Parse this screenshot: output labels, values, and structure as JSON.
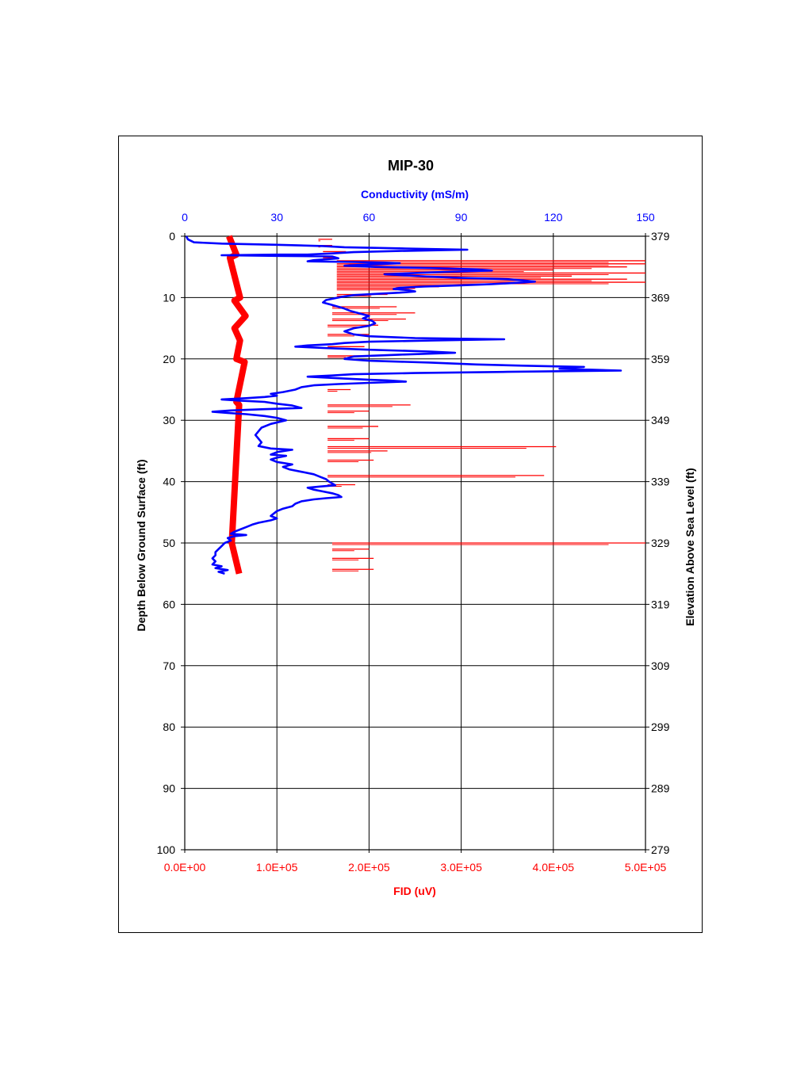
{
  "chart_data": {
    "type": "line",
    "title": "MIP-30",
    "top_axis": {
      "label": "Conductivity (mS/m)",
      "range": [
        0,
        150
      ],
      "ticks": [
        "0",
        "30",
        "60",
        "90",
        "120",
        "150"
      ],
      "color": "#0000ff"
    },
    "bottom_axis": {
      "label": "FID (uV)",
      "range": [
        0,
        500000
      ],
      "ticks": [
        "0.0E+00",
        "1.0E+05",
        "2.0E+05",
        "3.0E+05",
        "4.0E+05",
        "5.0E+05"
      ],
      "color": "#ff0000"
    },
    "left_axis": {
      "label": "Depth Below Ground Surface (ft)",
      "range": [
        0,
        100
      ],
      "ticks": [
        "0",
        "10",
        "20",
        "30",
        "40",
        "50",
        "60",
        "70",
        "80",
        "90",
        "100"
      ]
    },
    "right_axis": {
      "label": "Elevation Above Sea Level (ft)",
      "ticks": [
        "379",
        "369",
        "359",
        "349",
        "339",
        "329",
        "319",
        "309",
        "299",
        "289",
        "279"
      ]
    },
    "grid": true,
    "series": [
      {
        "name": "Conductivity (mS/m)",
        "color": "#0000ff",
        "axis": "top",
        "points": [
          [
            0.5,
            0
          ],
          [
            1,
            0.5
          ],
          [
            3,
            1
          ],
          [
            12,
            1.2
          ],
          [
            30,
            1.4
          ],
          [
            45,
            1.6
          ],
          [
            52,
            1.8
          ],
          [
            62,
            1.9
          ],
          [
            72,
            2
          ],
          [
            92,
            2.2
          ],
          [
            70,
            2.4
          ],
          [
            55,
            2.6
          ],
          [
            48,
            2.8
          ],
          [
            40,
            3
          ],
          [
            30,
            3
          ],
          [
            12,
            3.1
          ],
          [
            30,
            3.2
          ],
          [
            48,
            3.3
          ],
          [
            50,
            3.6
          ],
          [
            42,
            3.9
          ],
          [
            40,
            4.1
          ],
          [
            55,
            4.2
          ],
          [
            65,
            4.3
          ],
          [
            70,
            4.4
          ],
          [
            60,
            4.6
          ],
          [
            52,
            4.8
          ],
          [
            62,
            5
          ],
          [
            80,
            5.2
          ],
          [
            95,
            5.4
          ],
          [
            100,
            5.6
          ],
          [
            85,
            5.8
          ],
          [
            75,
            6
          ],
          [
            65,
            6.2
          ],
          [
            72,
            6.4
          ],
          [
            80,
            6.6
          ],
          [
            90,
            6.8
          ],
          [
            105,
            7
          ],
          [
            110,
            7.2
          ],
          [
            114,
            7.4
          ],
          [
            108,
            7.6
          ],
          [
            100,
            7.8
          ],
          [
            90,
            8
          ],
          [
            78,
            8.2
          ],
          [
            70,
            8.4
          ],
          [
            68,
            8.6
          ],
          [
            73,
            8.8
          ],
          [
            75,
            9
          ],
          [
            70,
            9.2
          ],
          [
            62,
            9.4
          ],
          [
            55,
            9.6
          ],
          [
            52,
            9.8
          ],
          [
            50,
            10
          ],
          [
            46,
            10.4
          ],
          [
            45,
            10.8
          ],
          [
            48,
            11.2
          ],
          [
            50,
            11.5
          ],
          [
            52,
            11.8
          ],
          [
            54,
            12.2
          ],
          [
            57,
            12.6
          ],
          [
            60,
            13
          ],
          [
            58,
            13.4
          ],
          [
            61,
            13.8
          ],
          [
            62,
            14.2
          ],
          [
            60,
            14.6
          ],
          [
            55,
            15
          ],
          [
            52,
            15.5
          ],
          [
            55,
            16
          ],
          [
            60,
            16.3
          ],
          [
            75,
            16.6
          ],
          [
            104,
            16.8
          ],
          [
            80,
            17
          ],
          [
            60,
            17.2
          ],
          [
            52,
            17.4
          ],
          [
            48,
            17.6
          ],
          [
            40,
            17.8
          ],
          [
            36,
            18
          ],
          [
            45,
            18.2
          ],
          [
            60,
            18.5
          ],
          [
            80,
            18.8
          ],
          [
            88,
            19
          ],
          [
            70,
            19.3
          ],
          [
            55,
            19.6
          ],
          [
            52,
            20
          ],
          [
            60,
            20.3
          ],
          [
            80,
            20.6
          ],
          [
            95,
            20.9
          ],
          [
            110,
            21.1
          ],
          [
            130,
            21.3
          ],
          [
            122,
            21.6
          ],
          [
            142,
            21.9
          ],
          [
            105,
            22.1
          ],
          [
            75,
            22.3
          ],
          [
            55,
            22.5
          ],
          [
            48,
            22.7
          ],
          [
            40,
            22.9
          ],
          [
            52,
            23.2
          ],
          [
            60,
            23.4
          ],
          [
            66,
            23.5
          ],
          [
            72,
            23.7
          ],
          [
            60,
            23.9
          ],
          [
            50,
            24.1
          ],
          [
            42,
            24.3
          ],
          [
            38,
            24.6
          ],
          [
            36,
            25
          ],
          [
            32,
            25.4
          ],
          [
            28,
            25.7
          ],
          [
            30,
            26
          ],
          [
            26,
            26.2
          ],
          [
            20,
            26.4
          ],
          [
            12,
            26.6
          ],
          [
            18,
            26.8
          ],
          [
            26,
            27
          ],
          [
            30,
            27.3
          ],
          [
            35,
            27.6
          ],
          [
            38,
            28
          ],
          [
            25,
            28.2
          ],
          [
            15,
            28.4
          ],
          [
            9,
            28.6
          ],
          [
            14,
            28.8
          ],
          [
            20,
            29
          ],
          [
            26,
            29.3
          ],
          [
            30,
            29.6
          ],
          [
            33,
            30
          ],
          [
            28,
            30.6
          ],
          [
            25,
            31.2
          ],
          [
            24,
            31.8
          ],
          [
            23,
            32.4
          ],
          [
            24,
            33
          ],
          [
            25,
            33.6
          ],
          [
            24,
            34.2
          ],
          [
            28,
            34.6
          ],
          [
            35,
            34.8
          ],
          [
            30,
            35.2
          ],
          [
            28,
            35.6
          ],
          [
            33,
            35.8
          ],
          [
            30,
            36.1
          ],
          [
            28,
            36.4
          ],
          [
            30,
            36.8
          ],
          [
            35,
            37.2
          ],
          [
            32,
            37.6
          ],
          [
            34,
            38
          ],
          [
            38,
            38.4
          ],
          [
            42,
            38.8
          ],
          [
            44,
            39.2
          ],
          [
            46,
            39.6
          ],
          [
            47,
            40
          ],
          [
            48,
            40.3
          ],
          [
            49,
            40.6
          ],
          [
            44,
            40.8
          ],
          [
            40,
            41
          ],
          [
            42,
            41.3
          ],
          [
            45,
            41.6
          ],
          [
            48,
            41.9
          ],
          [
            50,
            42.2
          ],
          [
            51,
            42.5
          ],
          [
            46,
            42.7
          ],
          [
            42,
            42.9
          ],
          [
            38,
            43.2
          ],
          [
            36,
            43.6
          ],
          [
            35,
            44
          ],
          [
            32,
            44.4
          ],
          [
            30,
            44.8
          ],
          [
            29,
            45.2
          ],
          [
            28,
            45.6
          ],
          [
            30,
            46
          ],
          [
            28,
            46.3
          ],
          [
            24,
            46.7
          ],
          [
            22,
            47
          ],
          [
            20,
            47.4
          ],
          [
            18,
            47.8
          ],
          [
            16,
            48.2
          ],
          [
            15,
            48.5
          ],
          [
            20,
            48.7
          ],
          [
            16,
            48.9
          ],
          [
            14,
            49.2
          ],
          [
            15,
            49.6
          ],
          [
            13,
            50
          ],
          [
            12,
            50.5
          ],
          [
            11,
            51
          ],
          [
            10,
            51.5
          ],
          [
            10,
            52
          ],
          [
            9,
            52.5
          ],
          [
            10,
            53
          ],
          [
            9,
            53.5
          ],
          [
            12,
            53.8
          ],
          [
            10,
            54.1
          ],
          [
            14,
            54.4
          ],
          [
            11,
            54.7
          ],
          [
            13,
            55
          ]
        ]
      },
      {
        "name": "FID (uV)",
        "color": "#ff0000",
        "axis": "bottom",
        "base": [
          [
            0,
            52000
          ],
          [
            3,
            52000
          ],
          [
            3.5,
            53000
          ],
          [
            10,
            56000
          ],
          [
            10.5,
            58000
          ],
          [
            13,
            62000
          ],
          [
            15,
            58000
          ],
          [
            17,
            56000
          ],
          [
            20,
            60000
          ],
          [
            20.5,
            61000
          ],
          [
            27,
            60000
          ],
          [
            27.5,
            55000
          ],
          [
            50,
            55000
          ],
          [
            55,
            55000
          ]
        ],
        "spikes": [
          [
            0.5,
            145000,
            160000
          ],
          [
            1.5,
            145000,
            160000
          ],
          [
            2.5,
            150000,
            175000
          ],
          [
            3.5,
            150000,
            165000
          ],
          [
            4.0,
            165000,
            500000
          ],
          [
            4.5,
            165000,
            500000
          ],
          [
            5.0,
            165000,
            480000
          ],
          [
            5.5,
            165000,
            400000
          ],
          [
            6.0,
            165000,
            500000
          ],
          [
            6.5,
            165000,
            420000
          ],
          [
            7.0,
            165000,
            480000
          ],
          [
            7.5,
            165000,
            500000
          ],
          [
            8.0,
            165000,
            300000
          ],
          [
            8.5,
            165000,
            250000
          ],
          [
            9.5,
            165000,
            220000
          ],
          [
            11.5,
            160000,
            230000
          ],
          [
            12.5,
            160000,
            250000
          ],
          [
            13.5,
            160000,
            240000
          ],
          [
            14.5,
            155000,
            210000
          ],
          [
            16.0,
            155000,
            200000
          ],
          [
            18.0,
            155000,
            195000
          ],
          [
            19.5,
            155000,
            190000
          ],
          [
            25.0,
            155000,
            180000
          ],
          [
            27.5,
            155000,
            245000
          ],
          [
            28.5,
            155000,
            200000
          ],
          [
            31.0,
            155000,
            210000
          ],
          [
            33.0,
            155000,
            200000
          ],
          [
            34.3,
            155000,
            403000
          ],
          [
            35.0,
            155000,
            220000
          ],
          [
            36.5,
            155000,
            205000
          ],
          [
            39.0,
            155000,
            390000
          ],
          [
            40.5,
            155000,
            185000
          ],
          [
            50.0,
            160000,
            500000
          ],
          [
            51.0,
            160000,
            200000
          ],
          [
            52.5,
            160000,
            205000
          ],
          [
            54.3,
            160000,
            205000
          ]
        ]
      }
    ]
  }
}
